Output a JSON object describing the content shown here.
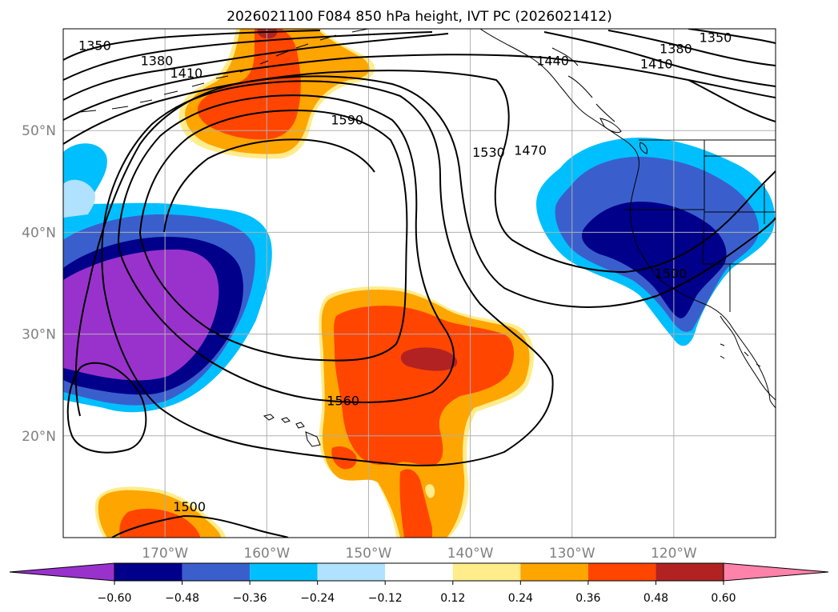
{
  "title": "2026021100 F084 850 hPa height, IVT PC (2026021412)",
  "chart_data": {
    "type": "heatmap",
    "title": "2026021100 F084 850 hPa height, IVT PC (2026021412)",
    "projection": "plate-carree",
    "xlim": [
      -180,
      -110
    ],
    "ylim": [
      10,
      60
    ],
    "grid": true,
    "x_ticks": [
      {
        "value": -170,
        "label": "170°W"
      },
      {
        "value": -160,
        "label": "160°W"
      },
      {
        "value": -150,
        "label": "150°W"
      },
      {
        "value": -140,
        "label": "140°W"
      },
      {
        "value": -130,
        "label": "130°W"
      },
      {
        "value": -120,
        "label": "120°W"
      }
    ],
    "y_ticks": [
      {
        "value": 20,
        "label": "20°N"
      },
      {
        "value": 30,
        "label": "30°N"
      },
      {
        "value": 40,
        "label": "40°N"
      },
      {
        "value": 50,
        "label": "50°N"
      }
    ],
    "colorbar": {
      "orientation": "horizontal",
      "extend": "both",
      "bounds": [
        -0.6,
        -0.48,
        -0.36,
        -0.24,
        -0.12,
        0.12,
        0.24,
        0.36,
        0.48,
        0.6
      ],
      "tick_labels": [
        "−0.60",
        "−0.48",
        "−0.36",
        "−0.24",
        "−0.12",
        "0.12",
        "0.24",
        "0.36",
        "0.48",
        "0.60"
      ],
      "colors": [
        "#9932CC",
        "#00008B",
        "#3A5FCD",
        "#00BFFF",
        "#B0E2FF",
        "#FFFFFF",
        "#FFEC8B",
        "#FFA500",
        "#FF4500",
        "#B22222",
        "#FF82AB"
      ]
    },
    "height_contours": {
      "variable": "850 hPa height",
      "levels": [
        1350,
        1380,
        1410,
        1440,
        1470,
        1500,
        1530,
        1560,
        1590
      ],
      "labels_shown": [
        "1350",
        "1380",
        "1410",
        "1440",
        "1470",
        "1500",
        "1530",
        "1560",
        "1590"
      ],
      "label_positions": [
        {
          "text": "1350",
          "lon": -176.9,
          "lat": 58.3
        },
        {
          "text": "1380",
          "lon": -170.8,
          "lat": 56.8
        },
        {
          "text": "1410",
          "lon": -167.9,
          "lat": 55.6
        },
        {
          "text": "1590",
          "lon": -152.1,
          "lat": 51.0
        },
        {
          "text": "1530",
          "lon": -138.2,
          "lat": 47.8
        },
        {
          "text": "1470",
          "lon": -134.1,
          "lat": 48.0
        },
        {
          "text": "1440",
          "lon": -131.9,
          "lat": 56.8
        },
        {
          "text": "1410",
          "lon": -121.7,
          "lat": 56.5
        },
        {
          "text": "1380",
          "lon": -119.8,
          "lat": 58.0
        },
        {
          "text": "1350",
          "lon": -115.9,
          "lat": 59.1
        },
        {
          "text": "1560",
          "lon": -152.5,
          "lat": 23.4
        },
        {
          "text": "1500",
          "lon": -120.3,
          "lat": 35.9
        },
        {
          "text": "1500",
          "lon": -167.6,
          "lat": 13.0
        }
      ]
    },
    "ivt_pc_features": [
      {
        "name": "",
        "sign": "negative",
        "min_value": -0.6,
        "center": {
          "lon": -172,
          "lat": 33
        }
      },
      {
        "name": "",
        "sign": "negative",
        "min_value": -0.48,
        "center": {
          "lon": -120,
          "lat": 38
        }
      },
      {
        "name": "",
        "sign": "positive",
        "max_value": 0.48,
        "center": {
          "lon": -143,
          "lat": 29
        }
      },
      {
        "name": "",
        "sign": "positive",
        "max_value": 0.36,
        "center": {
          "lon": -162,
          "lat": 54
        }
      },
      {
        "name": "",
        "sign": "positive",
        "max_value": 0.36,
        "center": {
          "lon": -168,
          "lat": 11
        }
      }
    ]
  }
}
